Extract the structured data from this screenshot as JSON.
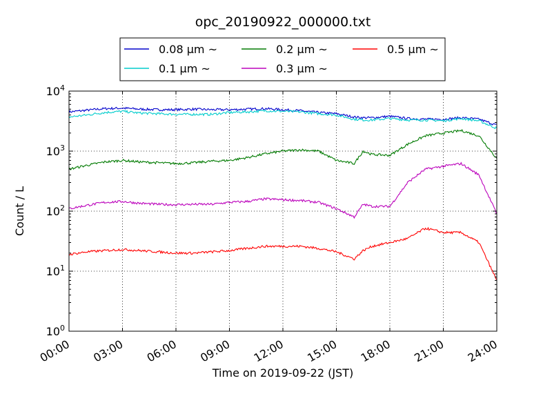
{
  "chart_data": {
    "type": "line",
    "title": "opc_20190922_000000.txt",
    "xlabel": "Time on 2019-09-22 (JST)",
    "ylabel": "Count / L",
    "yscale": "log",
    "xlim": [
      "00:00",
      "24:00"
    ],
    "ylim": [
      1,
      10000
    ],
    "x_ticks": [
      "00:00",
      "03:00",
      "06:00",
      "09:00",
      "12:00",
      "15:00",
      "18:00",
      "21:00",
      "24:00"
    ],
    "y_ticks": [
      {
        "value": 1,
        "base": "10",
        "exp": "0"
      },
      {
        "value": 10,
        "base": "10",
        "exp": "1"
      },
      {
        "value": 100,
        "base": "10",
        "exp": "2"
      },
      {
        "value": 1000,
        "base": "10",
        "exp": "3"
      },
      {
        "value": 10000,
        "base": "10",
        "exp": "4"
      }
    ],
    "grid": true,
    "legend": {
      "placement": "top-center",
      "columns": 3
    },
    "x": [
      "00:00",
      "01:00",
      "02:00",
      "03:00",
      "04:00",
      "05:00",
      "06:00",
      "07:00",
      "08:00",
      "09:00",
      "10:00",
      "11:00",
      "12:00",
      "13:00",
      "14:00",
      "15:00",
      "16:00",
      "16:30",
      "17:00",
      "18:00",
      "19:00",
      "20:00",
      "21:00",
      "22:00",
      "23:00",
      "24:00"
    ],
    "series": [
      {
        "name": "0.08 μm ~",
        "color": "#0000cc",
        "values": [
          4500,
          4800,
          5100,
          5200,
          5000,
          4900,
          4900,
          5000,
          4900,
          4900,
          5000,
          5100,
          4900,
          4700,
          4400,
          4200,
          3700,
          3600,
          3600,
          3800,
          3500,
          3400,
          3400,
          3600,
          3400,
          2700
        ]
      },
      {
        "name": "0.1 μm ~",
        "color": "#00cccc",
        "values": [
          3700,
          4000,
          4400,
          4600,
          4300,
          4200,
          4100,
          4100,
          4100,
          4400,
          4500,
          4700,
          4600,
          4500,
          4200,
          4000,
          3400,
          3300,
          3300,
          3500,
          3300,
          3300,
          3200,
          3500,
          3200,
          2400
        ]
      },
      {
        "name": "0.2 μm ~",
        "color": "#007a00",
        "values": [
          500,
          580,
          660,
          700,
          660,
          640,
          620,
          640,
          680,
          700,
          780,
          900,
          1000,
          1050,
          1000,
          700,
          620,
          1000,
          880,
          850,
          1300,
          1800,
          2000,
          2200,
          1800,
          750
        ]
      },
      {
        "name": "0.3 μm ~",
        "color": "#bb00bb",
        "values": [
          110,
          125,
          140,
          145,
          135,
          130,
          128,
          130,
          130,
          140,
          145,
          160,
          155,
          150,
          140,
          110,
          80,
          130,
          120,
          120,
          300,
          500,
          560,
          620,
          400,
          90
        ]
      },
      {
        "name": "0.5 μm ~",
        "color": "#ff0000",
        "values": [
          19,
          21,
          22,
          23,
          22,
          21,
          20,
          20,
          21,
          22,
          24,
          26,
          26,
          26,
          24,
          21,
          16,
          22,
          26,
          30,
          35,
          52,
          44,
          44,
          30,
          7
        ]
      }
    ]
  }
}
